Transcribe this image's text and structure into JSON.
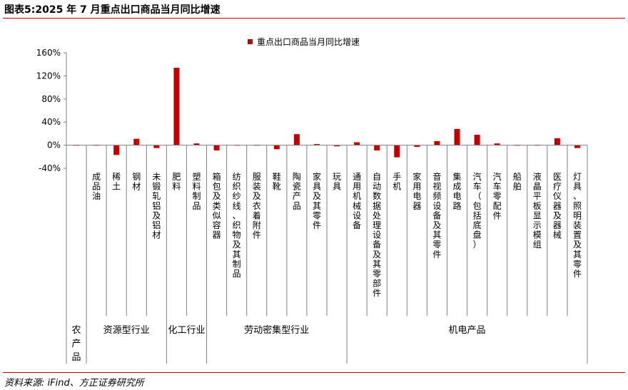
{
  "header": {
    "title": "图表5:2025 年 7 月重点出口商品当月同比增速"
  },
  "footer": {
    "source": "资料来源: iFind、方正证券研究所"
  },
  "colors": {
    "bar": "#c00000",
    "axis": "#808080",
    "rule": "#c00000"
  },
  "chart_data": {
    "type": "bar",
    "title": "",
    "xlabel": "",
    "ylabel": "",
    "ylim": [
      -40,
      160
    ],
    "yticks": [
      -40,
      0,
      40,
      80,
      120,
      160
    ],
    "ytick_labels": [
      "-40%",
      "0%",
      "40%",
      "80%",
      "120%",
      "160%"
    ],
    "legend": {
      "position": "top-center"
    },
    "categories": [
      "农产品",
      "成品油",
      "稀土",
      "钢材",
      "未锻轧铝及铝材",
      "肥料",
      "塑料制品",
      "箱包及类似容器",
      "纺织纱线、织物及其制品",
      "服装及衣着附件",
      "鞋靴",
      "陶瓷产品",
      "家具及其零件",
      "玩具",
      "通用机械设备",
      "自动数据处理设备及其零部件",
      "手机",
      "家用电器",
      "音视频设备及其零件",
      "集成电路",
      "汽车（包括底盘）",
      "汽车零配件",
      "船舶",
      "液晶平板显示模组",
      "医疗仪器及器械",
      "灯具、照明装置及其零件"
    ],
    "series": [
      {
        "name": "重点出口商品当月同比增速",
        "values": [
          1,
          -1,
          -17,
          11,
          -5,
          134,
          3,
          -9,
          0,
          0,
          -7,
          19,
          2,
          -2,
          5,
          -9,
          -21,
          -3,
          7,
          28,
          18,
          3,
          -1,
          1,
          12,
          -5
        ]
      }
    ],
    "groups": [
      {
        "label": "农产品",
        "start": 0,
        "end": 0
      },
      {
        "label": "资源型行业",
        "start": 1,
        "end": 4
      },
      {
        "label": "化工行业",
        "start": 5,
        "end": 6
      },
      {
        "label": "劳动密集型行业",
        "start": 7,
        "end": 13
      },
      {
        "label": "机电产品",
        "start": 14,
        "end": 25
      }
    ]
  }
}
